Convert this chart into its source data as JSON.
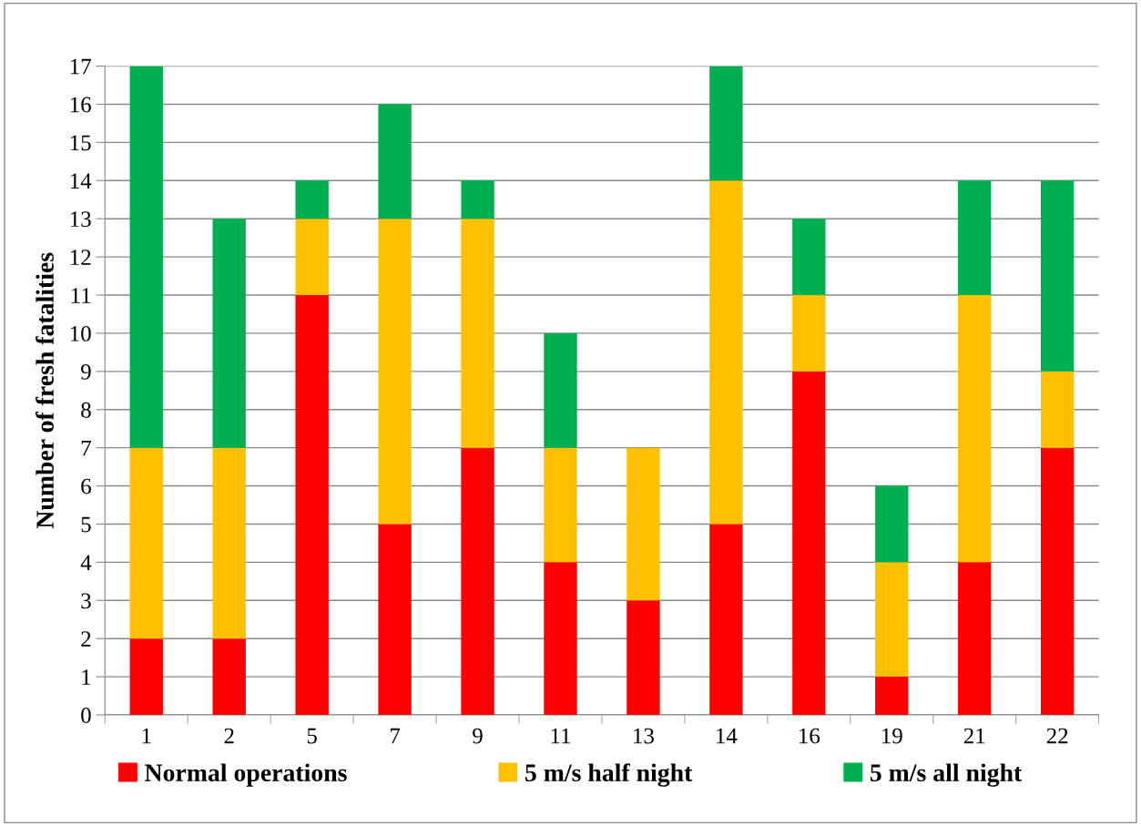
{
  "chart_data": {
    "type": "bar",
    "stacked": true,
    "ylabel": "Number of fresh fatalities",
    "categories": [
      "1",
      "2",
      "5",
      "7",
      "9",
      "11",
      "13",
      "14",
      "16",
      "19",
      "21",
      "22"
    ],
    "series": [
      {
        "name": "Normal operations",
        "color": "#ff0000",
        "values": [
          2,
          2,
          11,
          5,
          7,
          4,
          3,
          5,
          9,
          1,
          4,
          7
        ]
      },
      {
        "name": "5 m/s half night",
        "color": "#ffc000",
        "values": [
          5,
          5,
          2,
          8,
          6,
          3,
          4,
          9,
          2,
          3,
          7,
          2
        ]
      },
      {
        "name": "5 m/s all night",
        "color": "#00b050",
        "values": [
          10,
          6,
          1,
          3,
          1,
          3,
          0,
          3,
          2,
          2,
          3,
          5
        ]
      }
    ],
    "ylim": [
      0,
      17
    ],
    "yticks": [
      0,
      1,
      2,
      3,
      4,
      5,
      6,
      7,
      8,
      9,
      10,
      11,
      12,
      13,
      14,
      15,
      16,
      17
    ],
    "grid": "y",
    "legend": "bottom"
  }
}
